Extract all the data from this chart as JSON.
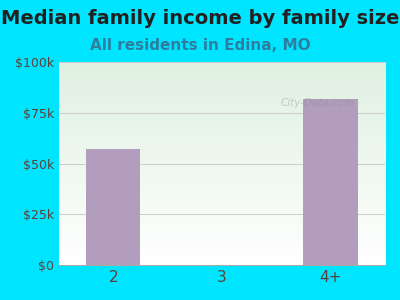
{
  "title": "Median family income by family size",
  "subtitle": "All residents in Edina, MO",
  "categories": [
    "2",
    "3",
    "4+"
  ],
  "values": [
    57000,
    0,
    82000
  ],
  "bar_color": "#b39dbe",
  "background_color": "#00e5ff",
  "plot_bg_color_top": "#dff0e0",
  "plot_bg_color_bottom": "#ffffff",
  "title_color": "#212121",
  "subtitle_color": "#2e7d9e",
  "axis_label_color": "#5d4037",
  "yticks": [
    0,
    25000,
    50000,
    75000,
    100000
  ],
  "ytick_labels": [
    "$0",
    "$25k",
    "$50k",
    "$75k",
    "$100k"
  ],
  "ylim": [
    0,
    100000
  ],
  "watermark": "City-Data.com",
  "title_fontsize": 14,
  "subtitle_fontsize": 11,
  "bar_width": 0.5
}
